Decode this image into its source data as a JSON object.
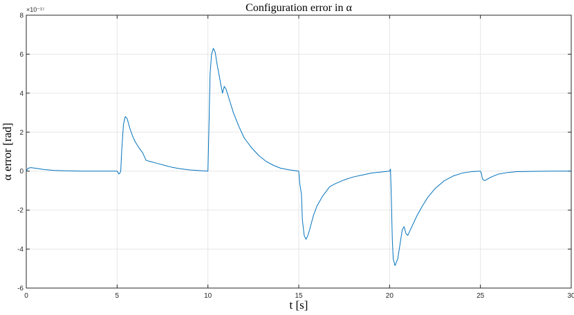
{
  "chart_data": {
    "type": "line",
    "title": "Configuration error in α",
    "xlabel": "t [s]",
    "ylabel": "α error [rad]",
    "y_exponent": "×10⁻¹⁷",
    "xlim": [
      0,
      30
    ],
    "ylim": [
      -6,
      8
    ],
    "xticks": [
      0,
      5,
      10,
      15,
      20,
      25,
      30
    ],
    "yticks": [
      -6,
      -4,
      -2,
      0,
      2,
      4,
      6,
      8
    ],
    "grid": true,
    "colors": {
      "series": "#0072BD",
      "grid": "#e6e6e6",
      "axis": "#262626"
    },
    "series": [
      {
        "x": [
          0,
          0.1,
          0.25,
          0.5,
          1.0,
          1.5,
          2.0,
          2.5,
          3.0,
          4.0,
          5.0,
          5.1,
          5.15,
          5.2,
          5.25,
          5.35,
          5.45,
          5.55,
          5.7,
          5.85,
          6.0,
          6.2,
          6.4,
          6.6,
          6.8,
          7.2,
          7.6,
          8.0,
          8.5,
          9.0,
          9.5,
          10.0,
          10.05,
          10.12,
          10.2,
          10.3,
          10.4,
          10.5,
          10.6,
          10.7,
          10.8,
          10.9,
          11.0,
          11.2,
          11.4,
          11.7,
          12.0,
          12.4,
          12.8,
          13.2,
          13.6,
          14.0,
          14.5,
          15.0,
          15.05,
          15.1,
          15.15,
          15.2,
          15.3,
          15.4,
          15.5,
          15.6,
          15.8,
          16.0,
          16.3,
          16.7,
          17.0,
          17.5,
          18.0,
          18.5,
          19.0,
          19.5,
          20.0,
          20.05,
          20.1,
          20.15,
          20.2,
          20.3,
          20.45,
          20.6,
          20.7,
          20.8,
          20.9,
          21.0,
          21.2,
          21.5,
          21.8,
          22.1,
          22.5,
          23.0,
          23.5,
          24.0,
          24.5,
          25.0,
          25.05,
          25.1,
          25.15,
          25.25,
          25.4,
          25.6,
          26.0,
          26.5,
          27.0,
          28.0,
          29.0,
          30.0
        ],
        "values": [
          0.0,
          0.15,
          0.18,
          0.15,
          0.08,
          0.04,
          0.02,
          0.01,
          0.0,
          0.0,
          0.0,
          -0.15,
          -0.1,
          0.0,
          1.0,
          2.4,
          2.8,
          2.7,
          2.2,
          1.8,
          1.5,
          1.2,
          0.95,
          0.55,
          0.5,
          0.4,
          0.3,
          0.2,
          0.12,
          0.06,
          0.03,
          0.0,
          2.0,
          5.0,
          6.0,
          6.3,
          6.1,
          5.5,
          5.0,
          4.5,
          4.0,
          4.35,
          4.2,
          3.6,
          3.0,
          2.3,
          1.7,
          1.2,
          0.8,
          0.5,
          0.3,
          0.15,
          0.06,
          0.0,
          -0.6,
          -0.9,
          -1.2,
          -2.5,
          -3.3,
          -3.5,
          -3.3,
          -3.0,
          -2.3,
          -1.8,
          -1.3,
          -0.8,
          -0.65,
          -0.45,
          -0.3,
          -0.2,
          -0.1,
          -0.05,
          0.0,
          0.1,
          -1.5,
          -3.5,
          -4.5,
          -4.85,
          -4.5,
          -3.6,
          -3.0,
          -2.85,
          -3.2,
          -3.3,
          -2.9,
          -2.3,
          -1.8,
          -1.35,
          -0.9,
          -0.5,
          -0.25,
          -0.1,
          -0.03,
          0.0,
          -0.1,
          -0.35,
          -0.45,
          -0.48,
          -0.4,
          -0.3,
          -0.15,
          -0.07,
          -0.03,
          -0.01,
          0.0,
          0.0
        ]
      }
    ]
  }
}
